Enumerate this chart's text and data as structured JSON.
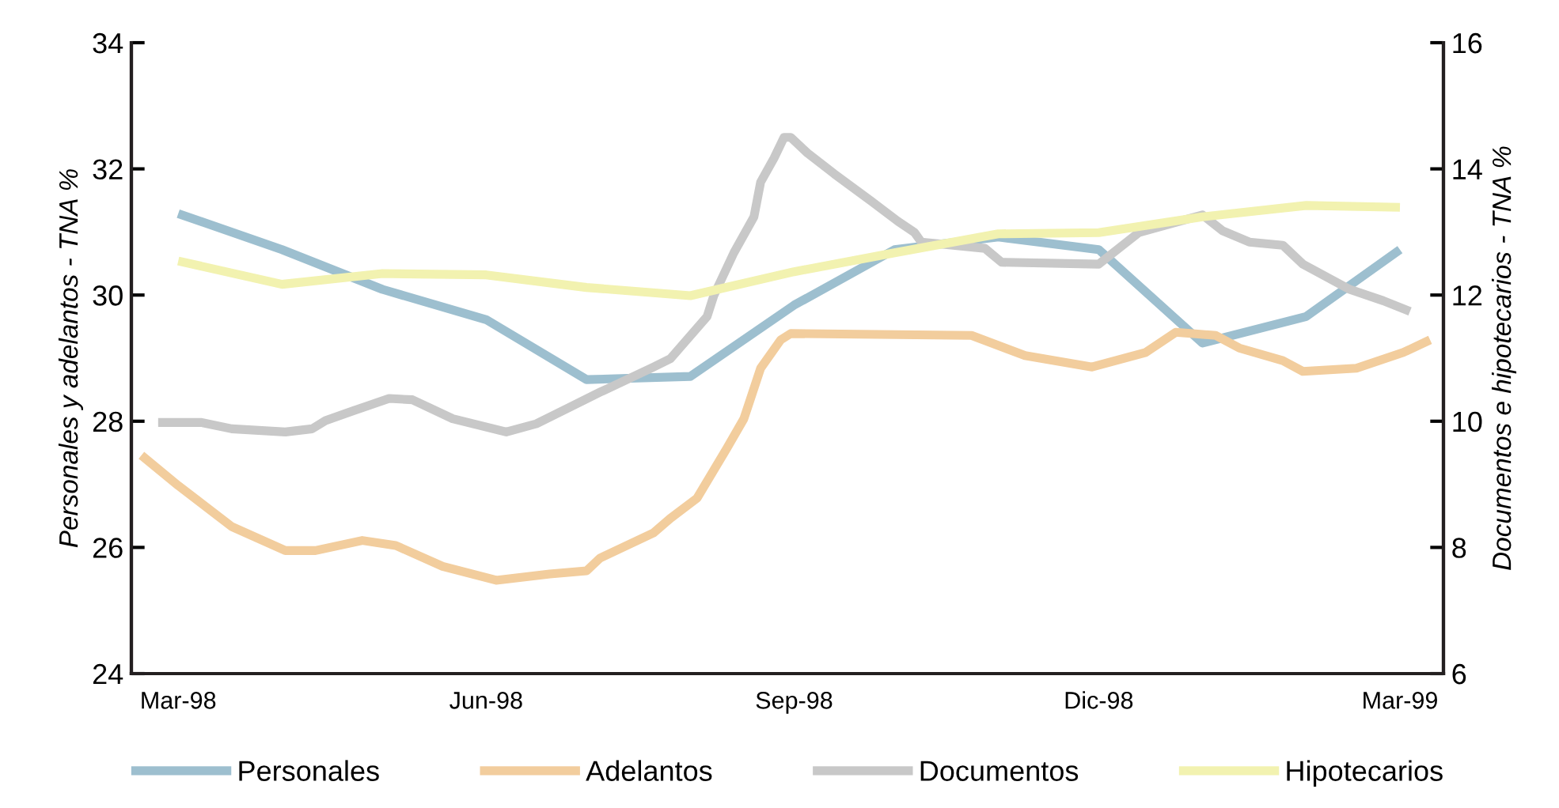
{
  "chart_data": {
    "type": "line",
    "ylabel": "Personales y adelantos - TNA %",
    "y2label": "Documentos e hipotecarios - TNA %",
    "xlim": [
      "1998-02-15",
      "1999-03-14"
    ],
    "xticks": [
      {
        "value": "1998-03-01",
        "label": "Mar-98"
      },
      {
        "value": "1998-06-01",
        "label": "Jun-98"
      },
      {
        "value": "1998-09-01",
        "label": "Sep-98"
      },
      {
        "value": "1998-12-01",
        "label": "Dic-98"
      },
      {
        "value": "1999-03-01",
        "label": "Mar-99"
      }
    ],
    "ylim": [
      24,
      34
    ],
    "yticks": [
      24,
      26,
      28,
      30,
      32,
      34
    ],
    "y2lim": [
      6,
      16
    ],
    "y2ticks": [
      6,
      8,
      10,
      12,
      14,
      16
    ],
    "grid": false,
    "legend": "bottom",
    "marker": "none",
    "line_style": "solid",
    "series": [
      {
        "name": "Personales",
        "color": "#9dbfcf",
        "x": [
          "1998-03-01",
          "1998-04-01",
          "1998-05-01",
          "1998-06-01",
          "1998-07-01",
          "1998-08-01",
          "1998-09-01",
          "1998-10-01",
          "1998-11-01",
          "1998-12-01",
          "1999-01-01",
          "1999-02-01",
          "1999-03-01"
        ],
        "values": [
          31.29,
          30.72,
          30.09,
          29.61,
          28.66,
          28.71,
          29.84,
          30.72,
          30.92,
          30.72,
          29.24,
          29.66,
          30.72
        ]
      },
      {
        "name": "Adelantos",
        "color": "#f2cd9d",
        "x": [
          "1998-02-18",
          "1998-03-01",
          "1998-03-17",
          "1998-04-02",
          "1998-04-11",
          "1998-04-25",
          "1998-05-05",
          "1998-05-19",
          "1998-06-04",
          "1998-06-20",
          "1998-07-01",
          "1998-07-05",
          "1998-07-21",
          "1998-07-26",
          "1998-08-03",
          "1998-08-12",
          "1998-08-17",
          "1998-08-22",
          "1998-08-28",
          "1998-08-31",
          "1998-10-24",
          "1998-11-09",
          "1998-11-29",
          "1998-12-15",
          "1998-12-24",
          "1999-01-05",
          "1999-01-12",
          "1999-01-25",
          "1999-01-31",
          "1999-02-16",
          "1999-03-02",
          "1999-03-10"
        ],
        "values": [
          27.46,
          26.98,
          26.33,
          25.95,
          25.95,
          26.11,
          26.03,
          25.7,
          25.48,
          25.58,
          25.63,
          25.83,
          26.23,
          26.46,
          26.78,
          27.58,
          28.04,
          28.84,
          29.29,
          29.39,
          29.36,
          29.04,
          28.86,
          29.09,
          29.41,
          29.36,
          29.16,
          28.96,
          28.79,
          28.84,
          29.09,
          29.29
        ]
      },
      {
        "name": "Documentos",
        "color": "#c8c8c8",
        "axis": "y2",
        "x": [
          "1998-02-23",
          "1998-03-08",
          "1998-03-17",
          "1998-04-02",
          "1998-04-10",
          "1998-04-14",
          "1998-04-22",
          "1998-05-03",
          "1998-05-10",
          "1998-05-22",
          "1998-06-07",
          "1998-06-16",
          "1998-07-05",
          "1998-07-21",
          "1998-07-26",
          "1998-08-06",
          "1998-08-08",
          "1998-08-14",
          "1998-08-20",
          "1998-08-22",
          "1998-08-26",
          "1998-08-29",
          "1998-08-31",
          "1998-09-05",
          "1998-09-13",
          "1998-09-24",
          "1998-10-02",
          "1998-10-07",
          "1998-10-09",
          "1998-10-28",
          "1998-11-02",
          "1998-12-01",
          "1998-12-13",
          "1999-01-01",
          "1999-01-07",
          "1999-01-15",
          "1999-01-25",
          "1999-01-31",
          "1999-02-14",
          "1999-02-24",
          "1999-03-04"
        ],
        "values": [
          9.98,
          9.98,
          9.88,
          9.83,
          9.88,
          10.01,
          10.16,
          10.36,
          10.34,
          10.04,
          9.83,
          9.96,
          10.46,
          10.86,
          10.99,
          11.66,
          11.99,
          12.67,
          13.24,
          13.79,
          14.17,
          14.5,
          14.5,
          14.25,
          13.92,
          13.49,
          13.17,
          12.99,
          12.84,
          12.74,
          12.52,
          12.49,
          12.99,
          13.27,
          13.02,
          12.84,
          12.79,
          12.49,
          12.09,
          11.91,
          11.74
        ]
      },
      {
        "name": "Hipotecarios",
        "color": "#f2f2b0",
        "axis": "y2",
        "x": [
          "1998-03-01",
          "1998-04-01",
          "1998-05-01",
          "1998-06-01",
          "1998-07-01",
          "1998-08-01",
          "1998-09-01",
          "1998-10-01",
          "1998-11-01",
          "1998-12-01",
          "1999-01-01",
          "1999-02-01",
          "1999-03-01"
        ],
        "values": [
          12.54,
          12.17,
          12.34,
          12.32,
          12.12,
          11.99,
          12.37,
          12.67,
          12.97,
          12.99,
          13.24,
          13.42,
          13.39
        ]
      }
    ]
  }
}
